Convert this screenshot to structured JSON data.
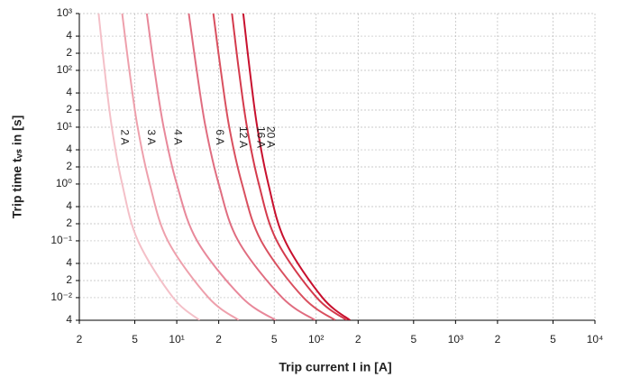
{
  "chart_data": {
    "type": "line",
    "x_label": "Trip current I in [A]",
    "y_label": "Trip time tᵥₛ in [s]",
    "xscale": "log",
    "yscale": "log",
    "grid": true,
    "xlim": [
      2,
      10000
    ],
    "ylim": [
      0.004,
      1000
    ],
    "xticks": [
      2,
      5,
      {
        "value": 10,
        "label": "10¹"
      },
      {
        "value": 20,
        "label": "2"
      },
      {
        "value": 50,
        "label": "5"
      },
      {
        "value": 100,
        "label": "10²"
      },
      {
        "value": 200,
        "label": "2"
      },
      {
        "value": 500,
        "label": "5"
      },
      {
        "value": 1000,
        "label": "10³"
      },
      {
        "value": 2000,
        "label": "2"
      },
      {
        "value": 5000,
        "label": "5"
      },
      {
        "value": 10000,
        "label": "10⁴"
      }
    ],
    "yticks": [
      {
        "value": 1000,
        "label": "10³"
      },
      {
        "value": 400,
        "label": "4"
      },
      {
        "value": 200,
        "label": "2"
      },
      {
        "value": 100,
        "label": "10²"
      },
      {
        "value": 40,
        "label": "4"
      },
      {
        "value": 20,
        "label": "2"
      },
      {
        "value": 10,
        "label": "10¹"
      },
      4,
      2,
      {
        "value": 1,
        "label": "10⁰"
      },
      {
        "value": 0.4,
        "label": "4"
      },
      {
        "value": 0.2,
        "label": "2"
      },
      {
        "value": 0.1,
        "label": "10⁻¹"
      },
      {
        "value": 0.04,
        "label": "4"
      },
      {
        "value": 0.02,
        "label": "2"
      },
      {
        "value": 0.01,
        "label": "10⁻²"
      },
      {
        "value": 0.004,
        "label": "4"
      }
    ],
    "series": [
      {
        "name": "2 A",
        "color": "#f4c0c8",
        "x": [
          2.75,
          3.04,
          3.42,
          4.06,
          5.27,
          9.42,
          14.6
        ],
        "values": [
          1000,
          100,
          10,
          1,
          0.1,
          0.01,
          0.004
        ]
      },
      {
        "name": "3 A",
        "color": "#eea0ac",
        "x": [
          4.06,
          4.57,
          5.24,
          6.4,
          8.63,
          16.9,
          27.9
        ],
        "values": [
          1000,
          100,
          10,
          1,
          0.1,
          0.01,
          0.004
        ]
      },
      {
        "name": "4 A",
        "color": "#e8889a",
        "x": [
          6.1,
          6.93,
          8.05,
          10.0,
          14.0,
          29.4,
          51.3
        ],
        "values": [
          1000,
          100,
          10,
          1,
          0.1,
          0.01,
          0.004
        ]
      },
      {
        "name": "6 A",
        "color": "#e06d80",
        "x": [
          12.2,
          13.9,
          16.1,
          20.0,
          27.6,
          57.1,
          98.4
        ],
        "values": [
          1000,
          100,
          10,
          1,
          0.1,
          0.01,
          0.004
        ]
      },
      {
        "name": "12 A",
        "color": "#d9505f",
        "x": [
          18.3,
          20.7,
          23.8,
          29.4,
          40.3,
          81.1,
          137
        ],
        "values": [
          1000,
          100,
          10,
          1,
          0.1,
          0.01,
          0.004
        ]
      },
      {
        "name": "16 A",
        "color": "#d43a4c",
        "x": [
          24.9,
          27.9,
          31.9,
          38.8,
          52.2,
          101,
          166
        ],
        "values": [
          1000,
          100,
          10,
          1,
          0.1,
          0.01,
          0.004
        ]
      },
      {
        "name": "20 A",
        "color": "#c8102e",
        "x": [
          30.0,
          33.4,
          37.8,
          45.4,
          59.8,
          111,
          175
        ],
        "values": [
          1000,
          100,
          10,
          1,
          0.1,
          0.01,
          0.004
        ]
      }
    ]
  }
}
